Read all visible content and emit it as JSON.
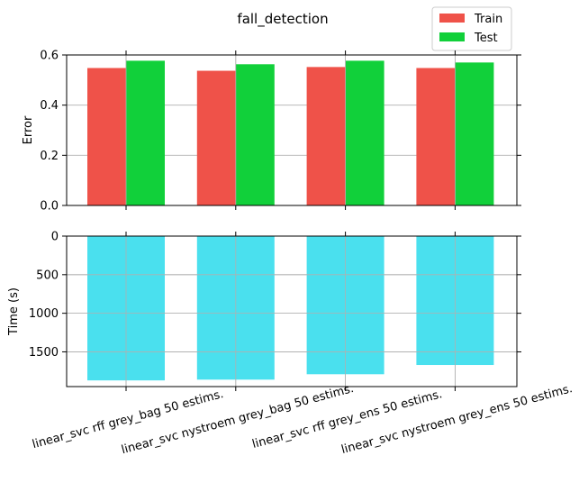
{
  "chart_data": [
    {
      "type": "bar",
      "title": "fall_detection",
      "ylabel": "Error",
      "xlabel": "",
      "ylim": [
        0,
        0.6
      ],
      "yticks": [
        "0.0",
        "0.2",
        "0.4",
        "0.6"
      ],
      "grid": true,
      "legend_position": "top-right",
      "categories": [
        "linear_svc rff grey_bag 50 estims.",
        "linear_svc nystroem grey_bag 50 estims.",
        "linear_svc rff grey_ens 50 estims.",
        "linear_svc nystroem grey_ens 50 estims."
      ],
      "series": [
        {
          "name": "Train",
          "color": "#ef5249",
          "values": [
            0.548,
            0.537,
            0.552,
            0.548
          ]
        },
        {
          "name": "Test",
          "color": "#11d03a",
          "values": [
            0.577,
            0.563,
            0.577,
            0.57
          ]
        }
      ]
    },
    {
      "type": "bar",
      "ylabel": "Time (s)",
      "xlabel": "",
      "ylim": [
        0,
        1950
      ],
      "inverted_y": true,
      "yticks": [
        "0",
        "500",
        "1000",
        "1500"
      ],
      "grid": true,
      "categories": [
        "linear_svc rff grey_bag 50 estims.",
        "linear_svc nystroem grey_bag 50 estims.",
        "linear_svc rff grey_ens 50 estims.",
        "linear_svc nystroem grey_ens 50 estims."
      ],
      "series": [
        {
          "name": "",
          "color": "#4ae0ee",
          "values": [
            1870,
            1860,
            1790,
            1670
          ]
        }
      ]
    }
  ]
}
